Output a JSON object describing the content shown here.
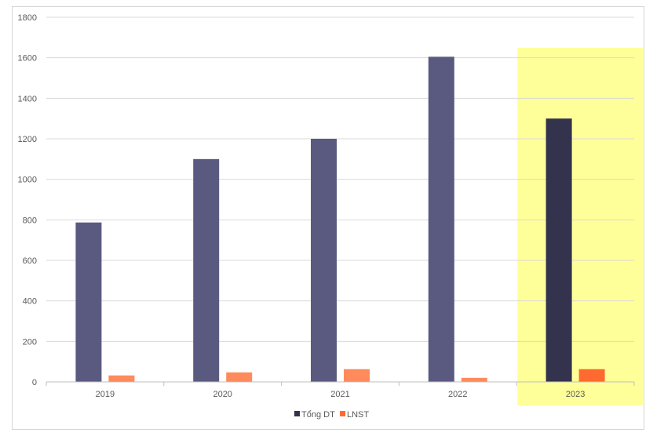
{
  "chart_data": {
    "type": "bar",
    "categories": [
      "2019",
      "2020",
      "2021",
      "2022",
      "2023"
    ],
    "series": [
      {
        "name": "Tổng DT",
        "values": [
          787,
          1100,
          1200,
          1605,
          1300
        ],
        "color": "#5a5a80"
      },
      {
        "name": "LNST",
        "values": [
          32,
          47,
          63,
          20,
          63
        ],
        "color": "#ff8a5c"
      }
    ],
    "highlight": {
      "category": "2023",
      "background": "#ffff99",
      "series_colors": [
        "#33334e",
        "#ff6a30"
      ]
    },
    "ylim": [
      0,
      1800
    ],
    "yticks": [
      0,
      200,
      400,
      600,
      800,
      1000,
      1200,
      1400,
      1600,
      1800
    ],
    "grid": true,
    "legend": {
      "position": "bottom",
      "marker_colors": [
        "#33334e",
        "#ff6a30"
      ]
    },
    "title": "",
    "xlabel": "",
    "ylabel": ""
  }
}
